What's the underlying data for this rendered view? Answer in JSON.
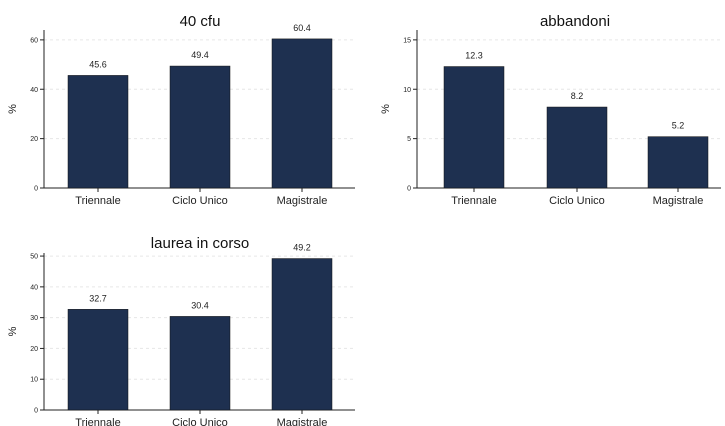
{
  "chart_data": [
    {
      "type": "bar",
      "title": "40 cfu",
      "ylabel": "%",
      "categories": [
        "Triennale",
        "Ciclo Unico",
        "Magistrale"
      ],
      "values": [
        45.6,
        49.4,
        60.4
      ],
      "value_labels": [
        "45.6",
        "49.4",
        "60.4"
      ],
      "yticks": [
        0,
        20,
        40,
        60
      ],
      "ylim": [
        0,
        64
      ],
      "bar_color": "#1e3050",
      "grid": true
    },
    {
      "type": "bar",
      "title": "abbandoni",
      "ylabel": "%",
      "categories": [
        "Triennale",
        "Ciclo Unico",
        "Magistrale"
      ],
      "values": [
        12.3,
        8.2,
        5.2
      ],
      "value_labels": [
        "12.3",
        "8.2",
        "5.2"
      ],
      "yticks": [
        0,
        5,
        10,
        15
      ],
      "ylim": [
        0,
        16
      ],
      "bar_color": "#1e3050",
      "grid": true
    },
    {
      "type": "bar",
      "title": "laurea in corso",
      "ylabel": "%",
      "categories": [
        "Triennale",
        "Ciclo Unico",
        "Magistrale"
      ],
      "values": [
        32.7,
        30.4,
        49.2
      ],
      "value_labels": [
        "32.7",
        "30.4",
        "49.2"
      ],
      "yticks": [
        0,
        10,
        20,
        30,
        40,
        50
      ],
      "ylim": [
        0,
        51
      ],
      "bar_color": "#1e3050",
      "grid": true
    }
  ]
}
